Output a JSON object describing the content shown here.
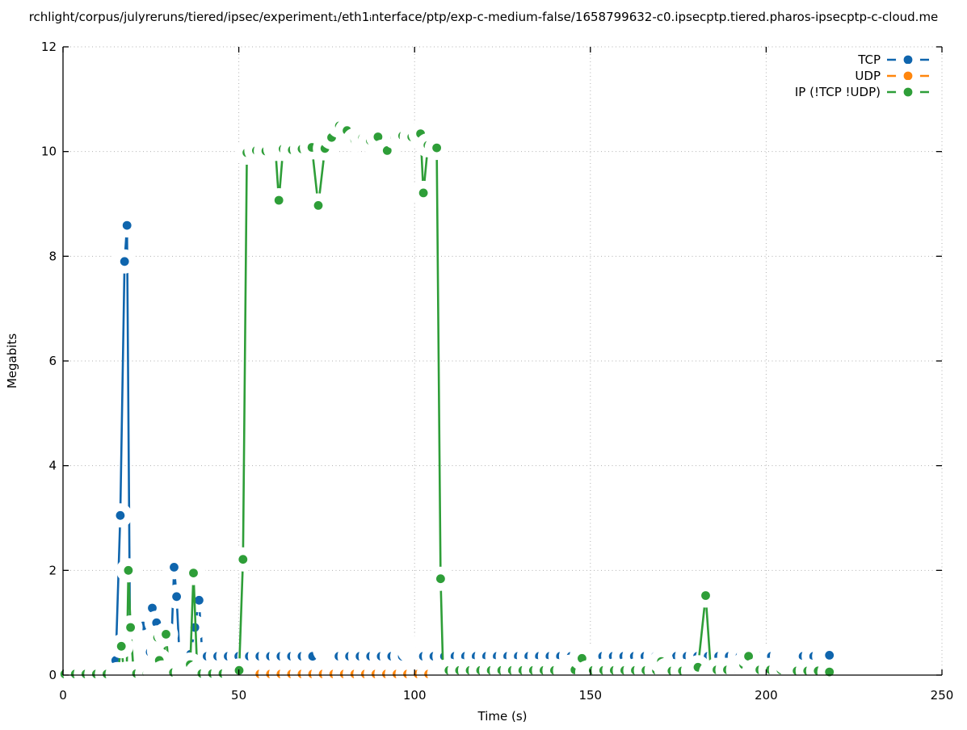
{
  "chart_data": {
    "type": "line",
    "title": "rchlight/corpus/julyreruns/tiered/ipsec/experiment₁/eth1ᵢnterface/ptp/exp-c-medium-false/1658799632-c0.ipsecptp.tiered.pharos-ipsecptp-c-cloud.me",
    "xlabel": "Time (s)",
    "ylabel": "Megabits",
    "xlim": [
      0,
      250
    ],
    "ylim": [
      0,
      12
    ],
    "xticks": [
      0,
      50,
      100,
      150,
      200,
      250
    ],
    "yticks": [
      0,
      2,
      4,
      6,
      8,
      10,
      12
    ],
    "grid": true,
    "legend_position": "top-right",
    "colors": {
      "axis": "#000000",
      "grid": "#b0b0b0",
      "background": "#ffffff"
    },
    "series": [
      {
        "name": "TCP",
        "color": "#0f65ad",
        "segments": [
          {
            "pts": [
              [
                13,
                0.02
              ],
              [
                14,
                0.04
              ],
              [
                15,
                0.28
              ],
              [
                16.3,
                3.05
              ],
              [
                17.5,
                7.9
              ],
              [
                18.2,
                8.59
              ],
              [
                19.1,
                0.45
              ],
              [
                20,
                0.52
              ],
              [
                21.1,
                0.52
              ],
              [
                22,
                0.44
              ],
              [
                22.8,
                0.94
              ],
              [
                23.2,
                0.55
              ],
              [
                24.1,
                0.5
              ],
              [
                24.8,
                0.44
              ],
              [
                25.4,
                1.28
              ],
              [
                26.6,
                1.0
              ],
              [
                27.3,
                0.46
              ],
              [
                28,
                0.52
              ],
              [
                28.7,
                0.44
              ],
              [
                29.4,
                0.5
              ],
              [
                30.1,
                0.4
              ],
              [
                30.7,
                0.34
              ],
              [
                31.6,
                2.06
              ],
              [
                32.3,
                1.5
              ],
              [
                33.1,
                0.4
              ],
              [
                33.9,
                0.34
              ],
              [
                34.7,
                0.4
              ],
              [
                35.5,
                0.35
              ],
              [
                36.3,
                0.4
              ],
              [
                37.5,
                0.91
              ],
              [
                38.7,
                1.43
              ],
              [
                39.6,
                0.4
              ]
            ]
          },
          {
            "run": [
              41,
              73,
              3,
              0.36
            ]
          },
          {
            "pts": [
              [
                74.5,
                0.47
              ],
              [
                75.8,
                0.52
              ],
              [
                77.1,
                0.44
              ]
            ]
          },
          {
            "run": [
              78.5,
              97.5,
              3,
              0.36
            ]
          },
          {
            "pts": [
              [
                98.6,
                0.46
              ],
              [
                99.8,
                0.52
              ],
              [
                101,
                0.46
              ]
            ]
          },
          {
            "run": [
              102.5,
              216.5,
              3,
              0.36
            ]
          },
          {
            "pts": [
              [
                218,
                0.38
              ]
            ]
          }
        ]
      },
      {
        "name": "UDP",
        "color": "#ff860d",
        "segments": [
          {
            "run": [
              50,
              217,
              3,
              0.02
            ]
          }
        ]
      },
      {
        "name": "IP (!TCP  !UDP)",
        "color": "#2e9e38",
        "segments": [
          {
            "run": [
              0.5,
              15.5,
              3,
              0.02
            ]
          },
          {
            "pts": [
              [
                16.6,
                0.55
              ],
              [
                17.4,
                0.02
              ],
              [
                18.1,
                0.03
              ],
              [
                18.6,
                2.0
              ],
              [
                19.2,
                0.91
              ],
              [
                20.1,
                0.03
              ]
            ]
          },
          {
            "run": [
              20.9,
              25,
              3,
              0.03
            ]
          },
          {
            "pts": [
              [
                26.2,
                0.04
              ],
              [
                26.9,
                0.72
              ],
              [
                27.4,
                0.28
              ],
              [
                28.3,
                0.05
              ],
              [
                29.3,
                0.78
              ],
              [
                30.2,
                0.05
              ]
            ]
          },
          {
            "run": [
              31.4,
              34.4,
              3,
              0.05
            ]
          },
          {
            "pts": [
              [
                35.4,
                0.12
              ],
              [
                36.2,
                0.2
              ],
              [
                37.1,
                1.95
              ],
              [
                38.2,
                0.05
              ]
            ]
          },
          {
            "run": [
              39.5,
              48.5,
              3,
              0.03
            ]
          },
          {
            "pts": [
              [
                50.1,
                0.09
              ],
              [
                51.2,
                2.21
              ],
              [
                52.3,
                9.98
              ],
              [
                55,
                10.02
              ],
              [
                57.7,
                10.01
              ],
              [
                60.4,
                10.05
              ],
              [
                61.4,
                9.07
              ],
              [
                62.6,
                10.05
              ],
              [
                65.2,
                10.03
              ],
              [
                68,
                10.05
              ],
              [
                70.8,
                10.08
              ],
              [
                72.6,
                8.97
              ],
              [
                74.5,
                10.06
              ],
              [
                76.4,
                10.27
              ],
              [
                78.6,
                10.49
              ],
              [
                80.8,
                10.4
              ],
              [
                83,
                10.22
              ],
              [
                85.2,
                10.26
              ],
              [
                87.4,
                10.21
              ],
              [
                89.6,
                10.28
              ],
              [
                90.9,
                10.0
              ],
              [
                92.2,
                10.02
              ],
              [
                94.4,
                10.28
              ],
              [
                96.6,
                10.3
              ],
              [
                99.2,
                10.28
              ],
              [
                101.7,
                10.34
              ],
              [
                102.5,
                9.21
              ],
              [
                103.8,
                10.12
              ],
              [
                106.3,
                10.07
              ],
              [
                107.4,
                1.84
              ],
              [
                108.1,
                0.06
              ]
            ]
          },
          {
            "run": [
              109.8,
              142.8,
              3,
              0.09
            ]
          },
          {
            "pts": [
              [
                144.2,
                0.16
              ],
              [
                145.6,
                0.1
              ],
              [
                147.6,
                0.32
              ],
              [
                149.1,
                0.05
              ]
            ]
          },
          {
            "run": [
              150.8,
              168.8,
              3,
              0.09
            ]
          },
          {
            "pts": [
              [
                170.2,
                0.26
              ],
              [
                171.6,
                0.1
              ]
            ]
          },
          {
            "run": [
              173.2,
              179.2,
              3,
              0.08
            ]
          },
          {
            "pts": [
              [
                180.6,
                0.15
              ],
              [
                182.8,
                1.52
              ],
              [
                184.3,
                0.05
              ]
            ]
          },
          {
            "run": [
              186,
              192,
              3,
              0.1
            ]
          },
          {
            "pts": [
              [
                193.6,
                0.2
              ],
              [
                195,
                0.36
              ],
              [
                196.6,
                0.08
              ]
            ]
          },
          {
            "run": [
              198.2,
              204.2,
              3,
              0.1
            ]
          },
          {
            "pts": [
              [
                205.6,
                0.24
              ],
              [
                207.1,
                0.15
              ]
            ]
          },
          {
            "run": [
              208.8,
              214.8,
              3,
              0.08
            ]
          },
          {
            "pts": [
              [
                218,
                0.06
              ]
            ]
          }
        ]
      }
    ]
  }
}
